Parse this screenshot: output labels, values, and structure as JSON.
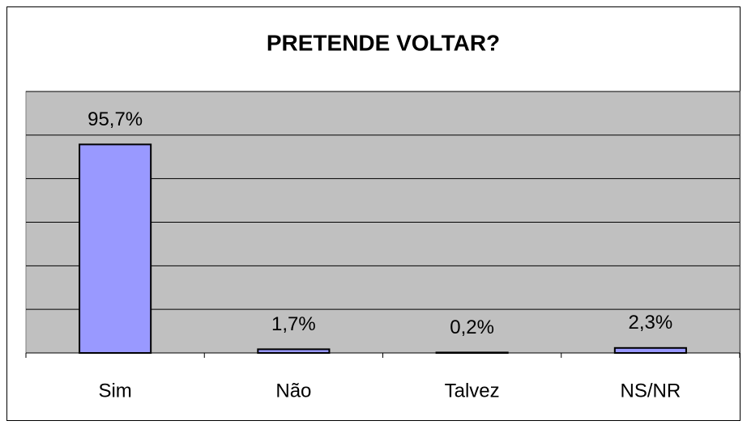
{
  "chart_data": {
    "type": "bar",
    "title": "PRETENDE VOLTAR?",
    "categories": [
      "Sim",
      "Não",
      "Talvez",
      "NS/NR"
    ],
    "values": [
      95.7,
      1.7,
      0.2,
      2.3
    ],
    "value_labels": [
      "95,7%",
      "1,7%",
      "0,2%",
      "2,3%"
    ],
    "color": "#9999ff",
    "ylim": [
      0,
      120
    ],
    "yticks": [
      0,
      20,
      40,
      60,
      80,
      100,
      120
    ],
    "grid": true
  }
}
